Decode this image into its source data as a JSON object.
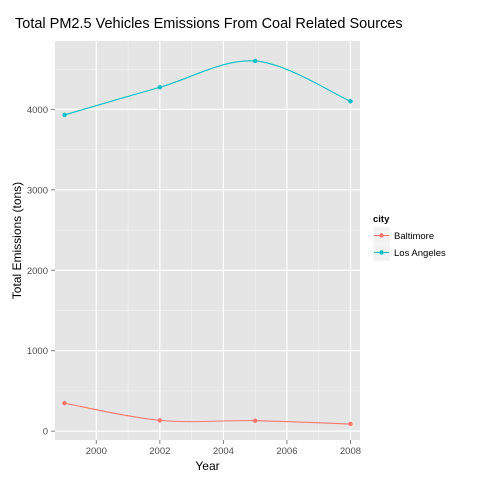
{
  "chart_data": {
    "type": "line",
    "title": "Total PM2.5 Vehicles Emissions From Coal Related Sources",
    "xlabel": "Year",
    "ylabel": "Total Emissions (tons)",
    "x": [
      1999,
      2002,
      2005,
      2008
    ],
    "xlim": [
      1998.7,
      2008.3
    ],
    "ylim": [
      -110,
      4850
    ],
    "x_ticks": [
      2000,
      2002,
      2004,
      2006,
      2008
    ],
    "y_ticks": [
      0,
      1000,
      2000,
      3000,
      4000
    ],
    "x_tick_labels": [
      "2000",
      "2002",
      "2004",
      "2006",
      "2008"
    ],
    "y_tick_labels": [
      "0",
      "1000",
      "2000",
      "3000",
      "4000"
    ],
    "grid": true,
    "smoothed": true,
    "legend": {
      "title": "city",
      "position": "right"
    },
    "series": [
      {
        "name": "Baltimore",
        "values": [
          347,
          134,
          130,
          89
        ],
        "color": "#F8766D"
      },
      {
        "name": "Los Angeles",
        "values": [
          3931,
          4275,
          4602,
          4101
        ],
        "color": "#00BFC4"
      }
    ]
  }
}
